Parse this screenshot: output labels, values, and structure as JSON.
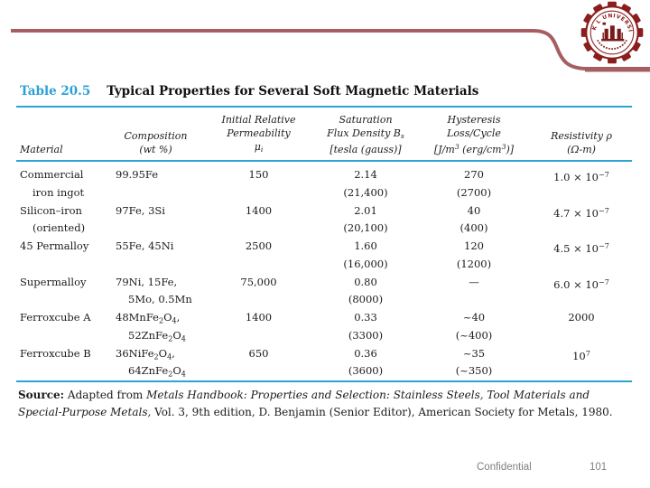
{
  "colors": {
    "accent_blue": "#2aa5d5",
    "accent_maroon": "#a55f63",
    "logo_red": "#8b1d1d",
    "footer_gray": "#7f7f7f"
  },
  "logo": {
    "arc_text": "K L UNIVERSITY"
  },
  "table": {
    "title_label": "Table 20.5",
    "title_text": "Typical Properties for Several Soft Magnetic Materials",
    "headers": {
      "material": "Material",
      "composition": [
        "Composition",
        "(wt %)"
      ],
      "permeability": [
        "Initial Relative",
        "Permeability"
      ],
      "permeability_symbol": [
        {
          "t": "μ"
        },
        {
          "t": "i",
          "sub": true
        }
      ],
      "flux_line1": "Saturation",
      "flux_line2": [
        {
          "t": "Flux Density B"
        },
        {
          "t": "s",
          "sub": true
        }
      ],
      "flux_line3": "[tesla (gauss)]",
      "hysteresis": [
        "Hysteresis",
        "Loss/Cycle"
      ],
      "hysteresis_line3": [
        {
          "t": "[J/m"
        },
        {
          "t": "3",
          "sup": true
        },
        {
          "t": " (erg/cm"
        },
        {
          "t": "3",
          "sup": true
        },
        {
          "t": ")]"
        }
      ],
      "resistivity": [
        "Resistivity ρ",
        "(Ω-m)"
      ]
    },
    "rows": [
      {
        "material": [
          "Commercial",
          "iron ingot"
        ],
        "composition": [
          [
            {
              "t": "99.95Fe"
            }
          ],
          []
        ],
        "permeability": "150",
        "flux": [
          "2.14",
          "(21,400)"
        ],
        "hysteresis": [
          "270",
          "(2700)"
        ],
        "resistivity": [
          {
            "t": "1.0 × 10"
          },
          {
            "t": "−7",
            "sup": true
          }
        ]
      },
      {
        "material": [
          "Silicon–iron",
          "(oriented)"
        ],
        "composition": [
          [
            {
              "t": "97Fe, 3Si"
            }
          ],
          []
        ],
        "permeability": "1400",
        "flux": [
          "2.01",
          "(20,100)"
        ],
        "hysteresis": [
          "40",
          "(400)"
        ],
        "resistivity": [
          {
            "t": "4.7 × 10"
          },
          {
            "t": "−7",
            "sup": true
          }
        ]
      },
      {
        "material": [
          "45 Permalloy",
          ""
        ],
        "composition": [
          [
            {
              "t": "55Fe, 45Ni"
            }
          ],
          []
        ],
        "permeability": "2500",
        "flux": [
          "1.60",
          "(16,000)"
        ],
        "hysteresis": [
          "120",
          "(1200)"
        ],
        "resistivity": [
          {
            "t": "4.5 × 10"
          },
          {
            "t": "−7",
            "sup": true
          }
        ]
      },
      {
        "material": [
          "Supermalloy",
          ""
        ],
        "composition": [
          [
            {
              "t": "79Ni, 15Fe,"
            }
          ],
          [
            {
              "t": "5Mo, 0.5Mn"
            }
          ]
        ],
        "permeability": "75,000",
        "flux": [
          "0.80",
          "(8000)"
        ],
        "hysteresis": [
          "—",
          ""
        ],
        "resistivity": [
          {
            "t": "6.0 × 10"
          },
          {
            "t": "−7",
            "sup": true
          }
        ]
      },
      {
        "material": [
          "Ferroxcube A",
          ""
        ],
        "composition": [
          [
            {
              "t": "48MnFe"
            },
            {
              "t": "2",
              "sub": true
            },
            {
              "t": "O"
            },
            {
              "t": "4",
              "sub": true
            },
            {
              "t": ","
            }
          ],
          [
            {
              "t": "52ZnFe"
            },
            {
              "t": "2",
              "sub": true
            },
            {
              "t": "O"
            },
            {
              "t": "4",
              "sub": true
            }
          ]
        ],
        "permeability": "1400",
        "flux": [
          "0.33",
          "(3300)"
        ],
        "hysteresis": [
          "~40",
          "(~400)"
        ],
        "resistivity": [
          {
            "t": "2000"
          }
        ]
      },
      {
        "material": [
          "Ferroxcube B",
          ""
        ],
        "composition": [
          [
            {
              "t": "36NiFe"
            },
            {
              "t": "2",
              "sub": true
            },
            {
              "t": "O"
            },
            {
              "t": "4",
              "sub": true
            },
            {
              "t": ","
            }
          ],
          [
            {
              "t": "64ZnFe"
            },
            {
              "t": "2",
              "sub": true
            },
            {
              "t": "O"
            },
            {
              "t": "4",
              "sub": true
            }
          ]
        ],
        "permeability": "650",
        "flux": [
          "0.36",
          "(3600)"
        ],
        "hysteresis": [
          "~35",
          "(~350)"
        ],
        "resistivity": [
          {
            "t": "10"
          },
          {
            "t": "7",
            "sup": true
          }
        ]
      }
    ],
    "source": {
      "label": "Source:",
      "text_before": " Adapted from ",
      "citation_italic": "Metals Handbook: Properties and Selection: Stainless Steels, Tool Materials and Special-Purpose Metals,",
      "text_after": " Vol. 3, 9th edition, D. Benjamin (Senior Editor), American Society for Metals, 1980."
    }
  },
  "footer": {
    "confidential": "Confidential",
    "page": "101"
  }
}
